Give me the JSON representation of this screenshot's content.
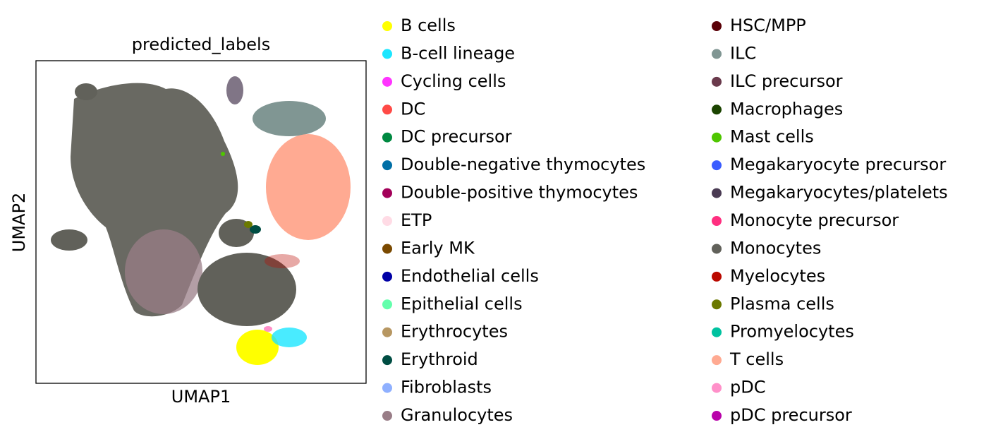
{
  "chart_data": {
    "type": "scatter",
    "title": "predicted_labels",
    "x_label": "UMAP1",
    "y_label": "UMAP2",
    "series": [
      {
        "name": "B cells",
        "color": "#ffff00"
      },
      {
        "name": "B-cell lineage",
        "color": "#1ce6ff"
      },
      {
        "name": "Cycling cells",
        "color": "#ff34ff"
      },
      {
        "name": "DC",
        "color": "#ff4a46"
      },
      {
        "name": "DC precursor",
        "color": "#008941"
      },
      {
        "name": "Double-negative thymocytes",
        "color": "#006fa6"
      },
      {
        "name": "Double-positive thymocytes",
        "color": "#a30059"
      },
      {
        "name": "ETP",
        "color": "#ffdbe5"
      },
      {
        "name": "Early MK",
        "color": "#7a4900"
      },
      {
        "name": "Endothelial cells",
        "color": "#0000a6"
      },
      {
        "name": "Epithelial cells",
        "color": "#63ffac"
      },
      {
        "name": "Erythrocytes",
        "color": "#b79762"
      },
      {
        "name": "Erythroid",
        "color": "#004d43"
      },
      {
        "name": "Fibroblasts",
        "color": "#8fb0ff"
      },
      {
        "name": "Granulocytes",
        "color": "#997d87"
      },
      {
        "name": "HSC/MPP",
        "color": "#5a0007"
      },
      {
        "name": "ILC",
        "color": "#809693"
      },
      {
        "name": "ILC precursor",
        "color": "#6a3a4c"
      },
      {
        "name": "Macrophages",
        "color": "#1b4400"
      },
      {
        "name": "Mast cells",
        "color": "#4fc601"
      },
      {
        "name": "Megakaryocyte precursor",
        "color": "#3b5dff"
      },
      {
        "name": "Megakaryocytes/platelets",
        "color": "#4a3b53"
      },
      {
        "name": "Monocyte precursor",
        "color": "#ff2f80"
      },
      {
        "name": "Monocytes",
        "color": "#61615a"
      },
      {
        "name": "Myelocytes",
        "color": "#ba0900"
      },
      {
        "name": "Plasma cells",
        "color": "#6b7900"
      },
      {
        "name": "Promyelocytes",
        "color": "#00c2a0"
      },
      {
        "name": "T cells",
        "color": "#ffaa92"
      },
      {
        "name": "pDC",
        "color": "#ff90c9"
      },
      {
        "name": "pDC precursor",
        "color": "#b903aa"
      }
    ]
  }
}
